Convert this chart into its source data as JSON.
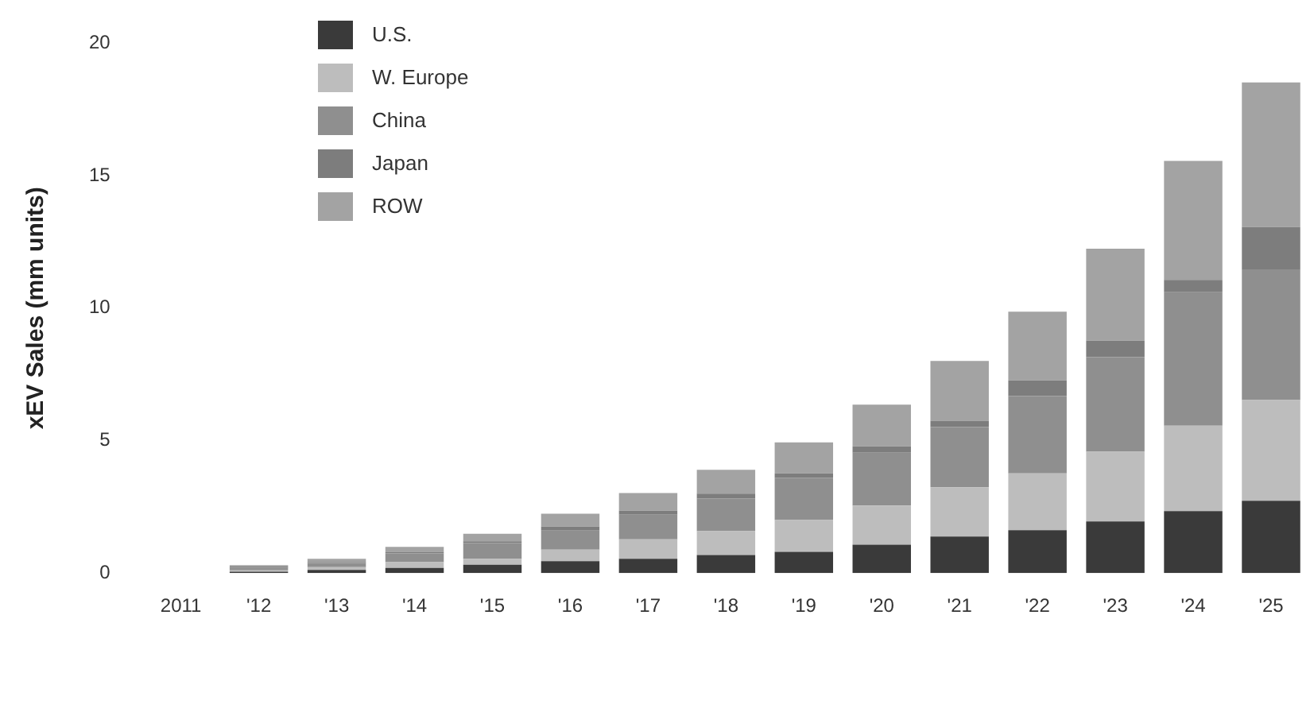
{
  "chart_data": {
    "type": "bar",
    "stacked": true,
    "ylabel": "xEV Sales (mm units)",
    "categories": [
      "2011",
      "'12",
      "'13",
      "'14",
      "'15",
      "'16",
      "'17",
      "'18",
      "'19",
      "'20",
      "'21",
      "'22",
      "'23",
      "'24",
      "'25"
    ],
    "series": [
      {
        "name": "U.S.",
        "color": "#3a3a3a",
        "values": [
          null,
          0.05,
          0.12,
          0.19,
          0.31,
          0.45,
          0.54,
          0.68,
          0.8,
          1.07,
          1.38,
          1.62,
          1.95,
          2.34,
          2.73
        ]
      },
      {
        "name": "W. Europe",
        "color": "#bdbdbd",
        "values": [
          null,
          0.05,
          0.1,
          0.22,
          0.23,
          0.43,
          0.73,
          0.9,
          1.2,
          1.48,
          1.86,
          2.14,
          2.63,
          3.22,
          3.8
        ]
      },
      {
        "name": "China",
        "color": "#8f8f8f",
        "values": [
          null,
          0.1,
          0.16,
          0.33,
          0.59,
          0.72,
          0.93,
          1.24,
          1.6,
          1.99,
          2.27,
          2.92,
          3.57,
          5.04,
          4.93
        ]
      },
      {
        "name": "Japan",
        "color": "#7d7d7d",
        "values": [
          null,
          0.05,
          0.04,
          0.06,
          0.07,
          0.15,
          0.15,
          0.18,
          0.16,
          0.24,
          0.24,
          0.59,
          0.62,
          0.47,
          1.6
        ]
      },
      {
        "name": "ROW",
        "color": "#a3a3a3",
        "values": [
          null,
          0.05,
          0.12,
          0.19,
          0.28,
          0.49,
          0.67,
          0.9,
          1.17,
          1.58,
          2.26,
          2.6,
          3.47,
          4.49,
          5.46
        ]
      }
    ],
    "ylim": [
      0,
      20
    ],
    "yticks": [
      0,
      5,
      10,
      15,
      20
    ],
    "grid": false,
    "legend": "top left"
  }
}
